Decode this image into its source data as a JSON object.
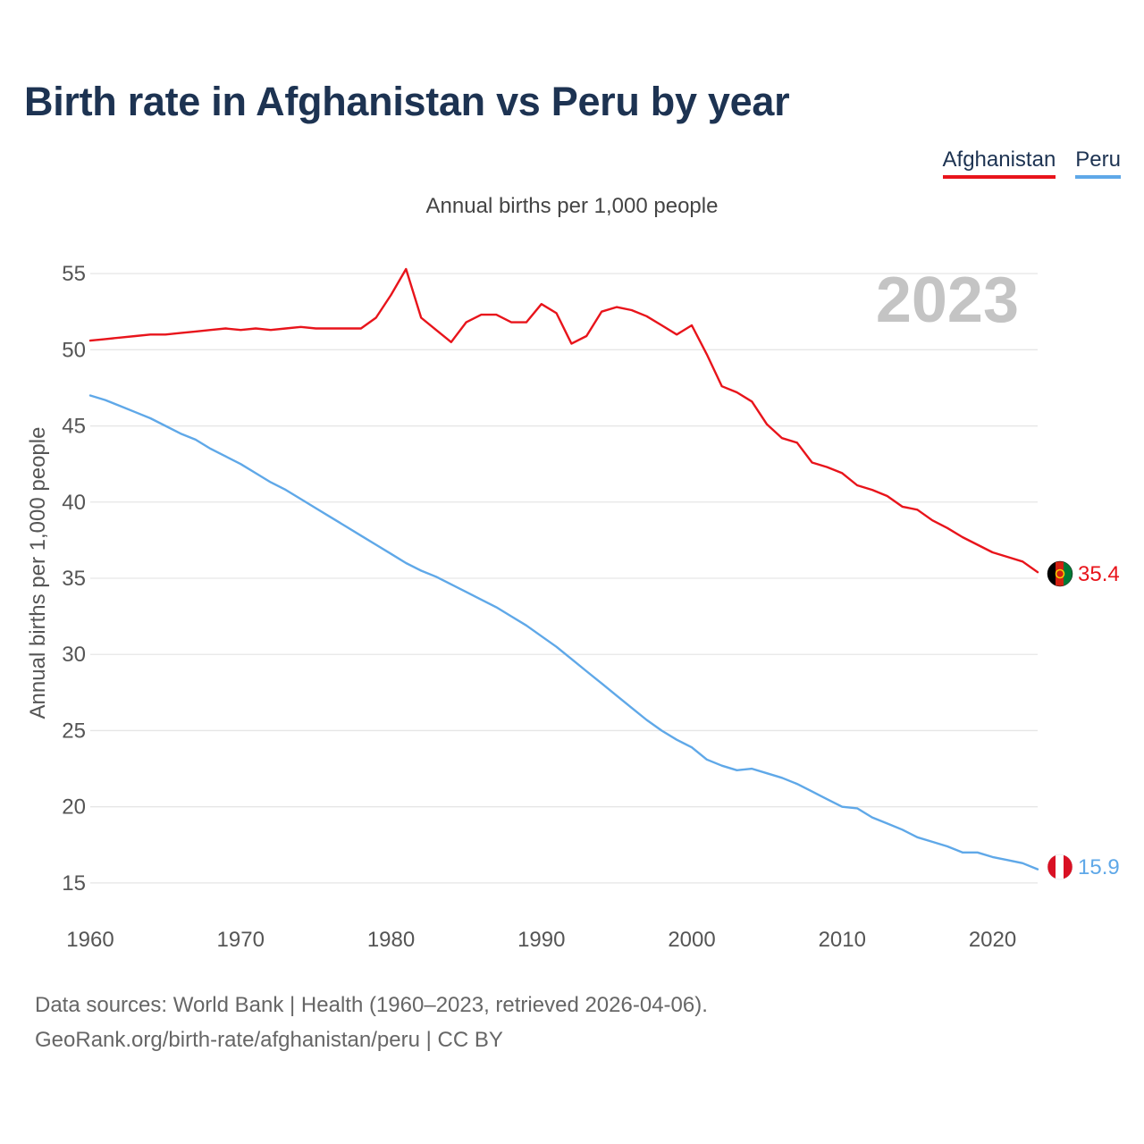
{
  "title": "Birth rate in Afghanistan vs Peru by year",
  "legend": [
    {
      "label": "Afghanistan",
      "color": "#e8141b"
    },
    {
      "label": "Peru",
      "color": "#5fa8e8"
    }
  ],
  "chart_data": {
    "type": "line",
    "title": "Birth rate in Afghanistan vs Peru by year",
    "subtitle": "Annual births per 1,000 people",
    "ylabel": "Annual births per 1,000 people",
    "xlabel": "",
    "year_label": "2023",
    "xlim": [
      1960,
      2023
    ],
    "ylim": [
      13,
      57
    ],
    "yticks": [
      15,
      20,
      25,
      30,
      35,
      40,
      45,
      50,
      55
    ],
    "xticks": [
      1960,
      1970,
      1980,
      1990,
      2000,
      2010,
      2020
    ],
    "grid": true,
    "x": [
      1960,
      1961,
      1962,
      1963,
      1964,
      1965,
      1966,
      1967,
      1968,
      1969,
      1970,
      1971,
      1972,
      1973,
      1974,
      1975,
      1976,
      1977,
      1978,
      1979,
      1980,
      1981,
      1982,
      1983,
      1984,
      1985,
      1986,
      1987,
      1988,
      1989,
      1990,
      1991,
      1992,
      1993,
      1994,
      1995,
      1996,
      1997,
      1998,
      1999,
      2000,
      2001,
      2002,
      2003,
      2004,
      2005,
      2006,
      2007,
      2008,
      2009,
      2010,
      2011,
      2012,
      2013,
      2014,
      2015,
      2016,
      2017,
      2018,
      2019,
      2020,
      2021,
      2022,
      2023
    ],
    "series": [
      {
        "name": "Afghanistan",
        "color": "#e8141b",
        "end_label": "35.4",
        "values": [
          50.6,
          50.7,
          50.8,
          50.9,
          51.0,
          51.0,
          51.1,
          51.2,
          51.3,
          51.4,
          51.3,
          51.4,
          51.3,
          51.4,
          51.5,
          51.4,
          51.4,
          51.4,
          51.4,
          52.1,
          53.6,
          55.3,
          52.1,
          51.3,
          50.5,
          51.8,
          52.3,
          52.3,
          51.8,
          51.8,
          53.0,
          52.4,
          50.4,
          50.9,
          52.5,
          52.8,
          52.6,
          52.2,
          51.6,
          51.0,
          51.6,
          49.7,
          47.6,
          47.2,
          46.6,
          45.1,
          44.2,
          43.9,
          42.6,
          42.3,
          41.9,
          41.1,
          40.8,
          40.4,
          39.7,
          39.5,
          38.8,
          38.3,
          37.7,
          37.2,
          36.7,
          36.4,
          36.1,
          35.4
        ]
      },
      {
        "name": "Peru",
        "color": "#5fa8e8",
        "end_label": "15.9",
        "values": [
          47.0,
          46.7,
          46.3,
          45.9,
          45.5,
          45.0,
          44.5,
          44.1,
          43.5,
          43.0,
          42.5,
          41.9,
          41.3,
          40.8,
          40.2,
          39.6,
          39.0,
          38.4,
          37.8,
          37.2,
          36.6,
          36.0,
          35.5,
          35.1,
          34.6,
          34.1,
          33.6,
          33.1,
          32.5,
          31.9,
          31.2,
          30.5,
          29.7,
          28.9,
          28.1,
          27.3,
          26.5,
          25.7,
          25.0,
          24.4,
          23.9,
          23.1,
          22.7,
          22.4,
          22.5,
          22.2,
          21.9,
          21.5,
          21.0,
          20.5,
          20.0,
          19.9,
          19.3,
          18.9,
          18.5,
          18.0,
          17.7,
          17.4,
          17.0,
          17.0,
          16.7,
          16.5,
          16.3,
          15.9
        ]
      }
    ]
  },
  "source": {
    "line1": "Data sources: World Bank | Health (1960–2023, retrieved 2026-04-06).",
    "line2": "GeoRank.org/birth-rate/afghanistan/peru | CC BY"
  }
}
